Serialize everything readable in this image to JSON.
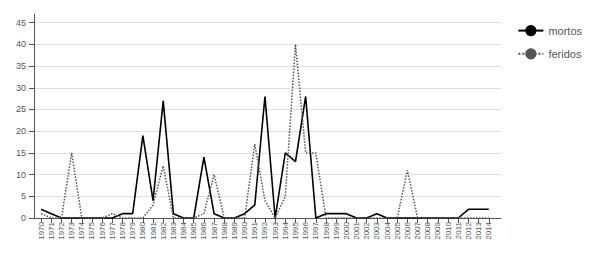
{
  "chart_data": {
    "type": "line",
    "x": [
      1970,
      1971,
      1972,
      1973,
      1974,
      1975,
      1976,
      1977,
      1978,
      1979,
      1980,
      1981,
      1982,
      1983,
      1984,
      1985,
      1986,
      1987,
      1988,
      1989,
      1990,
      1991,
      1992,
      1993,
      1994,
      1995,
      1996,
      1997,
      1998,
      1999,
      2000,
      2001,
      2002,
      2003,
      2004,
      2005,
      2006,
      2007,
      2008,
      2009,
      2010,
      2011,
      2012,
      2013,
      2014
    ],
    "series": [
      {
        "name": "mortos",
        "color": "#000000",
        "line_style": "solid",
        "values": [
          2,
          1,
          0,
          0,
          0,
          0,
          0,
          0,
          1,
          1,
          19,
          4,
          27,
          1,
          0,
          0,
          14,
          1,
          0,
          0,
          1,
          3,
          28,
          0,
          15,
          13,
          28,
          0,
          1,
          1,
          1,
          0,
          0,
          1,
          0,
          0,
          0,
          0,
          0,
          0,
          0,
          0,
          2,
          2,
          2
        ]
      },
      {
        "name": "feridos",
        "color": "#555555",
        "line_style": "dotted",
        "values": [
          1,
          0,
          0,
          15,
          0,
          0,
          0,
          1,
          0,
          0,
          0,
          3,
          12,
          0,
          0,
          0,
          1,
          10,
          0,
          0,
          0,
          17,
          4,
          0,
          5,
          40,
          15,
          15,
          0,
          0,
          0,
          0,
          0,
          0,
          0,
          0,
          11,
          0,
          0,
          0,
          0,
          0,
          0,
          0,
          0
        ]
      }
    ],
    "xlim": [
      1969.3,
      2015.2
    ],
    "xticks": [
      1970,
      1971,
      1972,
      1973,
      1974,
      1975,
      1976,
      1977,
      1978,
      1979,
      1980,
      1981,
      1982,
      1983,
      1984,
      1985,
      1986,
      1987,
      1988,
      1989,
      1990,
      1991,
      1992,
      1993,
      1994,
      1995,
      1996,
      1997,
      1998,
      1999,
      2000,
      2001,
      2002,
      2003,
      2004,
      2005,
      2006,
      2007,
      2008,
      2009,
      2010,
      2011,
      2012,
      2013,
      2014
    ],
    "ylim": [
      0,
      47
    ],
    "yticks": [
      0,
      5,
      10,
      15,
      20,
      25,
      30,
      35,
      40,
      45
    ],
    "grid": true,
    "legend": "upper right"
  }
}
